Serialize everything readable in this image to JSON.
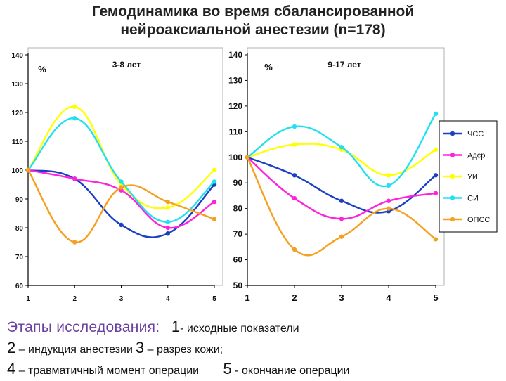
{
  "title": {
    "line1": "Гемодинамика во время сбалансированной",
    "line2": "нейроаксиальной анестезии (n=178)"
  },
  "colors": {
    "ЧСС": "#1a3fc0",
    "Адср": "#ff22dd",
    "УИ": "#ffff00",
    "СИ": "#22e0f0",
    "ОПСС": "#f5a01e"
  },
  "chart_data": [
    {
      "type": "line",
      "title": "3-8 лет",
      "ylabel": "%",
      "xlabel": "",
      "x": [
        "1",
        "2",
        "3",
        "4",
        "5"
      ],
      "ylim": [
        60,
        140
      ],
      "yticks": [
        "60",
        "70",
        "80",
        "90",
        "100",
        "110",
        "120",
        "130",
        "140"
      ],
      "grid": false,
      "legend": "none",
      "series": [
        {
          "name": "ЧСС",
          "values": [
            100,
            97,
            81,
            78,
            95
          ]
        },
        {
          "name": "Адср",
          "values": [
            100,
            97,
            93,
            80,
            89
          ]
        },
        {
          "name": "УИ",
          "values": [
            100,
            122,
            95,
            87,
            100
          ]
        },
        {
          "name": "СИ",
          "values": [
            100,
            118,
            96,
            82,
            96
          ]
        },
        {
          "name": "ОПСС",
          "values": [
            100,
            75,
            94,
            89,
            83
          ]
        }
      ]
    },
    {
      "type": "line",
      "title": "9-17 лет",
      "ylabel": "%",
      "xlabel": "",
      "x": [
        "1",
        "2",
        "3",
        "4",
        "5"
      ],
      "ylim": [
        50,
        140
      ],
      "yticks": [
        "50",
        "60",
        "70",
        "80",
        "90",
        "100",
        "110",
        "120",
        "130",
        "140"
      ],
      "grid": false,
      "legend": "right",
      "series": [
        {
          "name": "ЧСС",
          "values": [
            100,
            93,
            83,
            79,
            93
          ]
        },
        {
          "name": "Адср",
          "values": [
            100,
            84,
            76,
            83,
            86
          ]
        },
        {
          "name": "УИ",
          "values": [
            100,
            105,
            103,
            93,
            103
          ]
        },
        {
          "name": "СИ",
          "values": [
            100,
            112,
            104,
            89,
            117
          ]
        },
        {
          "name": "ОПСС",
          "values": [
            100,
            64,
            69,
            80,
            68
          ]
        }
      ]
    }
  ],
  "caption": {
    "stages_heading": "Этапы исследования:",
    "stage1_num": "1",
    "stage1_text": "- исходные показатели",
    "stage2_num": "2",
    "stage2_text": "– индукция анестезии",
    "stage3_num": "3",
    "stage3_text": "– разрез кожи;",
    "stage4_num": "4",
    "stage4_text": "– травматичный момент операции",
    "stage5_num": "5",
    "stage5_text": "- окончание операции"
  }
}
